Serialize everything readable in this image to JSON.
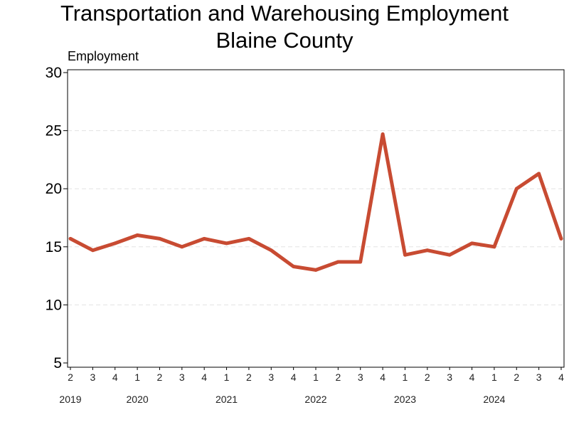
{
  "chart_data": {
    "type": "line",
    "title": "Transportation and Warehousing Employment",
    "subtitle": "Blaine County",
    "ylabel": "Employment",
    "xlabel": "",
    "ylim": [
      5,
      30
    ],
    "yticks": [
      5,
      10,
      15,
      20,
      25,
      30
    ],
    "grid": "horizontal dashed",
    "categories": [
      "2",
      "3",
      "4",
      "1",
      "2",
      "3",
      "4",
      "1",
      "2",
      "3",
      "4",
      "1",
      "2",
      "3",
      "4",
      "1",
      "2",
      "3",
      "4",
      "1",
      "2",
      "3",
      "4"
    ],
    "year_labels": [
      {
        "label": "2019",
        "quarter_index": 0
      },
      {
        "label": "2020",
        "quarter_index": 3
      },
      {
        "label": "2021",
        "quarter_index": 7
      },
      {
        "label": "2022",
        "quarter_index": 11
      },
      {
        "label": "2023",
        "quarter_index": 15
      },
      {
        "label": "2024",
        "quarter_index": 19
      }
    ],
    "series": [
      {
        "color": "#c84b32",
        "values": [
          15.7,
          14.7,
          15.3,
          16.0,
          15.7,
          15.0,
          15.7,
          15.3,
          15.7,
          14.7,
          13.3,
          13.0,
          13.7,
          13.7,
          24.7,
          14.3,
          14.7,
          14.3,
          15.3,
          15.0,
          20.0,
          21.3,
          15.7
        ]
      }
    ]
  }
}
